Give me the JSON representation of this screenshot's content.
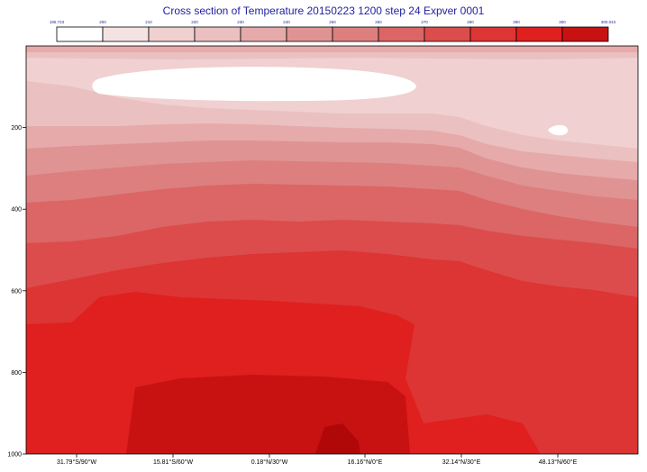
{
  "chart_data": {
    "type": "contour",
    "title": "Cross section of Temperature 20150223 1200 step 24 Expver 0001",
    "legend": {
      "position": "top",
      "labels": [
        "185.723",
        "200",
        "210",
        "220",
        "230",
        "240",
        "250",
        "260",
        "270",
        "280",
        "290",
        "300",
        "300.043"
      ],
      "colors": [
        "#ffffff",
        "#f5e3e3",
        "#f0d0d0",
        "#ebc0c0",
        "#e6aaaa",
        "#e09393",
        "#dd7f7f",
        "#dc6565",
        "#dc4c4c",
        "#dd3434",
        "#e01f1f",
        "#c81212",
        "#b00808"
      ]
    },
    "y_axis": {
      "ticks": [
        "200",
        "400",
        "600",
        "800",
        "1000"
      ],
      "range": [
        0,
        1000
      ],
      "inverted": true
    },
    "x_axis": {
      "ticks": [
        "31.79°S/90°W",
        "15.81°S/60°W",
        "0.18°N/30°W",
        "16.16°N/0°E",
        "32.14°N/30°E",
        "48.13°N/60°E"
      ]
    },
    "grid": false,
    "levels_note": "filled contours of temperature by pressure level along the cross-section path"
  }
}
